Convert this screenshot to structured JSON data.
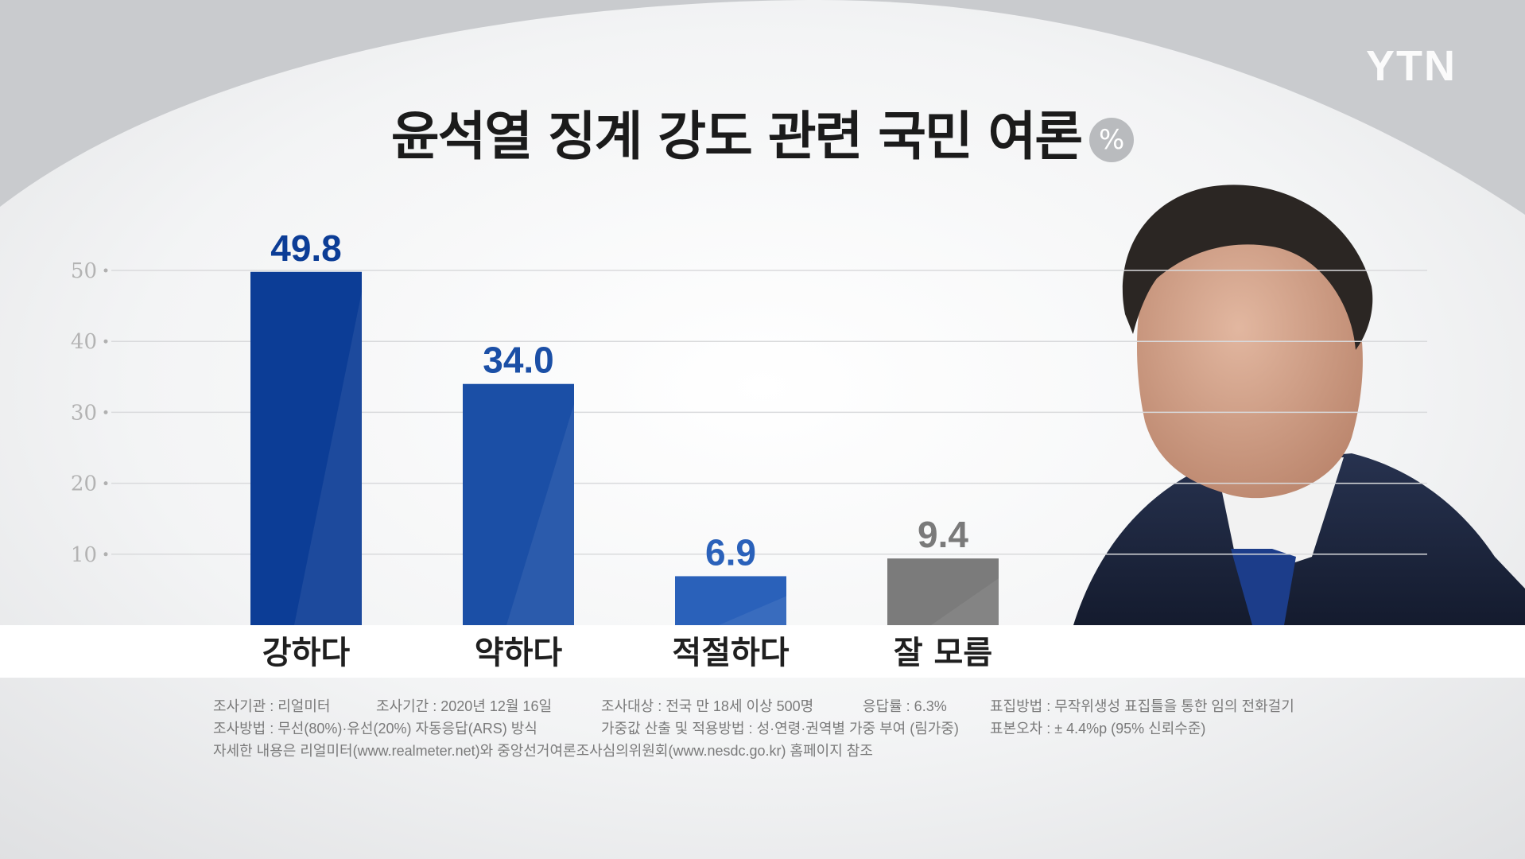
{
  "header": {
    "logo": "YTN",
    "title": "윤석열 징계 강도 관련 국민 여론",
    "unit_badge": "%"
  },
  "chart_data": {
    "type": "bar",
    "title": "윤석열 징계 강도 관련 국민 여론",
    "unit": "%",
    "categories": [
      "강하다",
      "약하다",
      "적절하다",
      "잘 모름"
    ],
    "values": [
      49.8,
      34.0,
      6.9,
      9.4
    ],
    "value_labels": [
      "49.8",
      "34.0",
      "6.9",
      "9.4"
    ],
    "bar_colors": [
      "#0c3d96",
      "#1b4fa6",
      "#2a61ba",
      "#7b7b7b"
    ],
    "value_label_colors": [
      "#0c3d96",
      "#1b4fa6",
      "#2a61ba",
      "#7a7a7a"
    ],
    "y_ticks": [
      10,
      20,
      30,
      40,
      50
    ],
    "ylim": [
      0,
      50
    ],
    "grid": true,
    "legend": "none"
  },
  "footnotes": {
    "row1": [
      "조사기관 : 리얼미터",
      "조사기간 : 2020년 12월 16일",
      "조사대상 : 전국 만 18세 이상 500명",
      "응답률 : 6.3%",
      "표집방법 : 무작위생성 표집틀을 통한 임의 전화걸기"
    ],
    "row2": [
      "조사방법 : 무선(80%)·유선(20%) 자동응답(ARS) 방식",
      "가중값 산출 및 적용방법 : 성·연령·권역별 가중 부여 (림가중)",
      "표본오차 : ± 4.4%p (95% 신뢰수준)"
    ],
    "row3": [
      "자세한 내용은 리얼미터(www.realmeter.net)와 중앙선거여론조사심의위원회(www.nesdc.go.kr) 홈페이지 참조"
    ]
  }
}
